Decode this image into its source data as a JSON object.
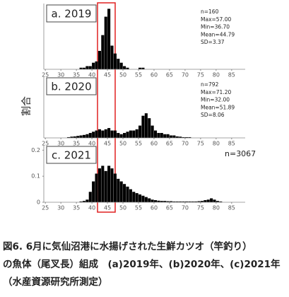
{
  "chart_data": [
    {
      "type": "histogram",
      "title": "a. 2019",
      "annotations": [
        "n=160",
        "Max=57.00",
        "Min=36.70",
        "Mean=44.79",
        "SD=3.37"
      ],
      "bins": [
        36,
        37,
        38,
        39,
        40,
        41,
        42,
        43,
        44,
        45,
        46,
        47,
        48,
        49,
        50,
        51,
        52,
        53,
        54,
        55,
        56,
        57
      ],
      "values": [
        0.006,
        0.006,
        0.012,
        0.012,
        0.025,
        0.03,
        0.07,
        0.13,
        0.2,
        0.23,
        0.09,
        0.06,
        0.04,
        0.025,
        0.012,
        0.006,
        0,
        0,
        0,
        0.006,
        0.006
      ],
      "color": "#000000",
      "xlim": [
        24.5,
        88
      ],
      "ylim": [
        0,
        0.25
      ],
      "xticks": [
        25,
        30,
        35,
        40,
        45,
        50,
        55,
        60,
        65,
        70,
        75,
        80,
        85
      ]
    },
    {
      "type": "histogram",
      "title": "b. 2020",
      "ylabel": "割合",
      "annotations": [
        "n=792",
        "Max=71.20",
        "Min=32.00",
        "Mean=51.89",
        "SD=8.06"
      ],
      "bins": [
        32,
        33,
        34,
        35,
        36,
        37,
        38,
        39,
        40,
        41,
        42,
        43,
        44,
        45,
        46,
        47,
        48,
        49,
        50,
        51,
        52,
        53,
        54,
        55,
        56,
        57,
        58,
        59,
        60,
        61,
        62,
        63,
        64,
        65,
        66,
        67,
        68,
        69,
        70,
        71,
        72
      ],
      "values": [
        0.003,
        0.005,
        0.006,
        0.008,
        0.01,
        0.012,
        0.015,
        0.02,
        0.025,
        0.03,
        0.035,
        0.03,
        0.035,
        0.04,
        0.03,
        0.03,
        0.02,
        0.015,
        0.02,
        0.025,
        0.03,
        0.03,
        0.035,
        0.05,
        0.09,
        0.1,
        0.08,
        0.05,
        0.03,
        0.02,
        0.02,
        0.015,
        0.015,
        0.01,
        0.01,
        0.006,
        0.005,
        0.003,
        0.003,
        0.003
      ],
      "color": "#000000",
      "xlim": [
        24.5,
        88
      ],
      "ylim": [
        0,
        0.25
      ],
      "xticks": [
        25,
        30,
        35,
        40,
        45,
        50,
        55,
        60,
        65,
        70,
        75,
        80,
        85
      ]
    },
    {
      "type": "histogram",
      "title": "c. 2021",
      "annotations": [
        "n=3067"
      ],
      "bins": [
        36,
        37,
        38,
        39,
        40,
        41,
        42,
        43,
        44,
        45,
        46,
        47,
        48,
        49,
        50,
        51,
        52,
        53,
        54,
        55,
        56,
        57,
        58,
        59,
        60,
        61,
        62,
        63,
        64,
        65,
        66,
        67,
        68,
        69,
        70,
        71,
        72,
        73,
        74,
        75,
        76,
        77,
        78,
        79,
        80,
        81,
        82
      ],
      "values": [
        0.003,
        0.005,
        0.01,
        0.04,
        0.08,
        0.11,
        0.13,
        0.14,
        0.12,
        0.14,
        0.13,
        0.11,
        0.09,
        0.08,
        0.07,
        0.06,
        0.05,
        0.04,
        0.035,
        0.03,
        0.025,
        0.02,
        0.015,
        0.01,
        0.008,
        0.006,
        0.005,
        0.005,
        0.004,
        0.004,
        0.003,
        0.003,
        0.003,
        0.003,
        0.003,
        0.003,
        0.003,
        0.003,
        0.004,
        0.005,
        0.008,
        0.01,
        0.015,
        0.01,
        0.005,
        0.003
      ],
      "color": "#000000",
      "xlim": [
        24.5,
        88
      ],
      "ylim": [
        0,
        0.22
      ],
      "xticks": [
        25,
        30,
        35,
        40,
        45,
        50,
        55,
        60,
        65,
        70,
        75,
        80,
        85
      ],
      "yticks": [
        0,
        0.1,
        0.2
      ]
    }
  ],
  "caption": [
    "図6.  6月に気仙沼港に水揚げされた生鮮カツオ（竿釣り）",
    "の魚体（尾叉長）組成　(a)2019年、(b)2020年、(c)2021年",
    "（水産資源研究所測定）"
  ]
}
